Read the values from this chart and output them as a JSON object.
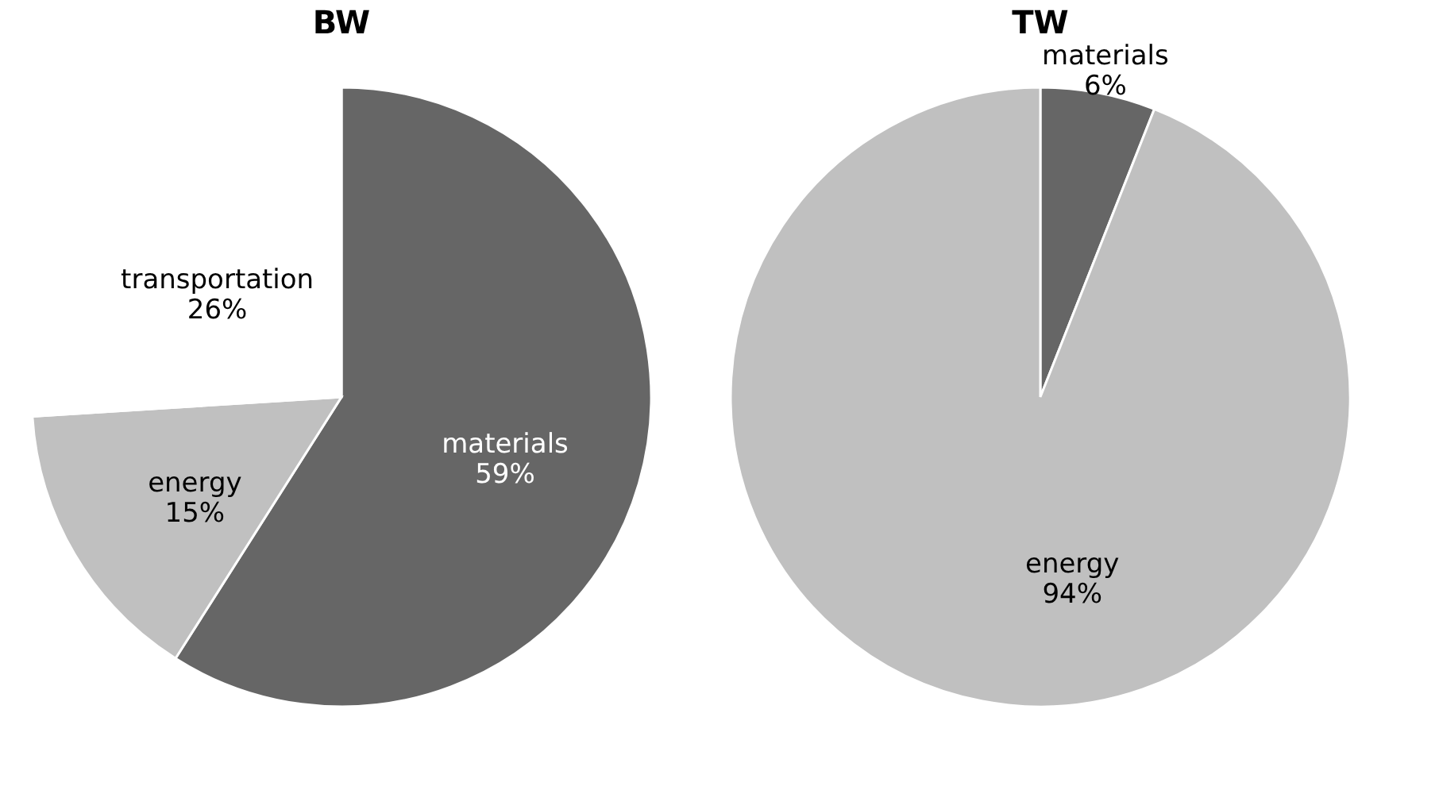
{
  "chart_data": [
    {
      "type": "pie",
      "title": "BW",
      "categories": [
        "materials",
        "energy",
        "transportation"
      ],
      "values": [
        59,
        15,
        26
      ],
      "colors": [
        "#666666",
        "#c0c0c0",
        "#ffffff"
      ],
      "value_labels": [
        "59%",
        "15%",
        "26%"
      ],
      "legend": false
    },
    {
      "type": "pie",
      "title": "TW",
      "categories": [
        "materials",
        "energy"
      ],
      "values": [
        6,
        94
      ],
      "colors": [
        "#666666",
        "#c0c0c0"
      ],
      "value_labels": [
        "6%",
        "94%"
      ],
      "legend": false
    }
  ]
}
